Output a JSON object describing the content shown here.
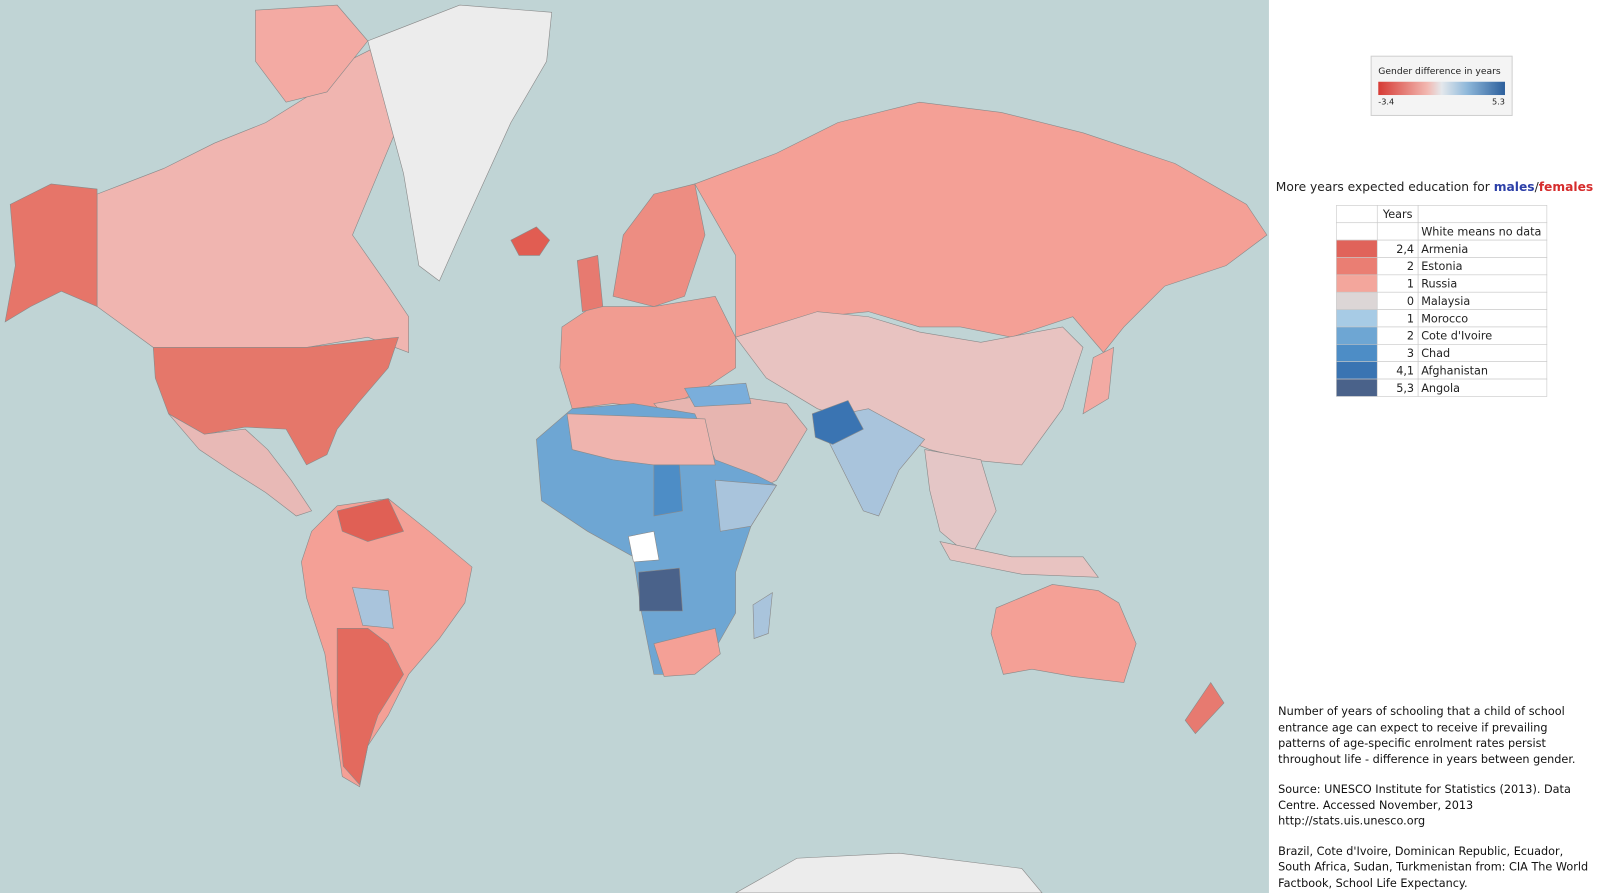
{
  "legend": {
    "title": "Gender difference in years",
    "min": -3.4,
    "max": 5.3
  },
  "headline": {
    "text": "More years expected education for",
    "males": "males",
    "separator": "/",
    "females": "females"
  },
  "table": {
    "header": "Years",
    "note": "White means no data",
    "rows": [
      {
        "value": "2,4",
        "country": "Armenia",
        "color": "#e0635a"
      },
      {
        "value": "2",
        "country": "Estonia",
        "color": "#ea7e73"
      },
      {
        "value": "1",
        "country": "Russia",
        "color": "#f3a69c"
      },
      {
        "value": "0",
        "country": "Malaysia",
        "color": "#dcd6d6"
      },
      {
        "value": "1",
        "country": "Morocco",
        "color": "#a7cbe5"
      },
      {
        "value": "2",
        "country": "Cote d'Ivoire",
        "color": "#6ea6d3"
      },
      {
        "value": "3",
        "country": "Chad",
        "color": "#4d8dc6"
      },
      {
        "value": "4,1",
        "country": "Afghanistan",
        "color": "#3a74b2"
      },
      {
        "value": "5,3",
        "country": "Angola",
        "color": "#4a628a"
      }
    ]
  },
  "notes": [
    "Number of years of schooling that a child of school entrance age can expect to receive if prevailing patterns of age-specific enrolment rates persist throughout life - difference in years between gender.",
    "Source: UNESCO Institute for Statistics (2013). Data Centre. Accessed November, 2013 http://stats.uis.unesco.org",
    "Brazil, Cote d'Ivoire, Dominican Republic, Ecuador, South Africa, Sudan, Turkmenistan from: CIA The World Factbook, School Life Expectancy."
  ]
}
